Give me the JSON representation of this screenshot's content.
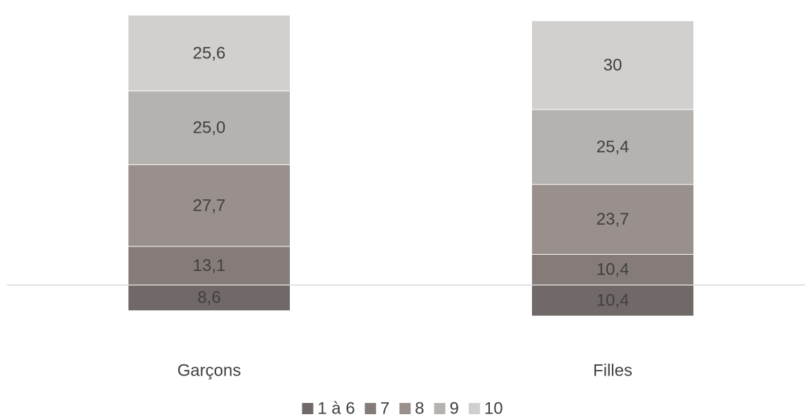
{
  "chart_data": {
    "type": "bar",
    "stacked": true,
    "categories": [
      "Garçons",
      "Filles"
    ],
    "series": [
      {
        "name": "1 à 6",
        "values": [
          8.6,
          10.4
        ],
        "labels": [
          "8,6",
          "10,4"
        ],
        "color": "#716868"
      },
      {
        "name": "7",
        "values": [
          13.1,
          10.4
        ],
        "labels": [
          "13,1",
          "10,4"
        ],
        "color": "#857c79"
      },
      {
        "name": "8",
        "values": [
          27.7,
          23.7
        ],
        "labels": [
          "27,7",
          "23,7"
        ],
        "color": "#998f8c"
      },
      {
        "name": "9",
        "values": [
          25.0,
          25.4
        ],
        "labels": [
          "25,0",
          "25,4"
        ],
        "color": "#b5b2af"
      },
      {
        "name": "10",
        "values": [
          25.6,
          30
        ],
        "labels": [
          "25,6",
          "30"
        ],
        "color": "#d1d0ce"
      }
    ],
    "legend_position": "bottom",
    "grid": false,
    "baseline_color": "#d9d9d9"
  }
}
